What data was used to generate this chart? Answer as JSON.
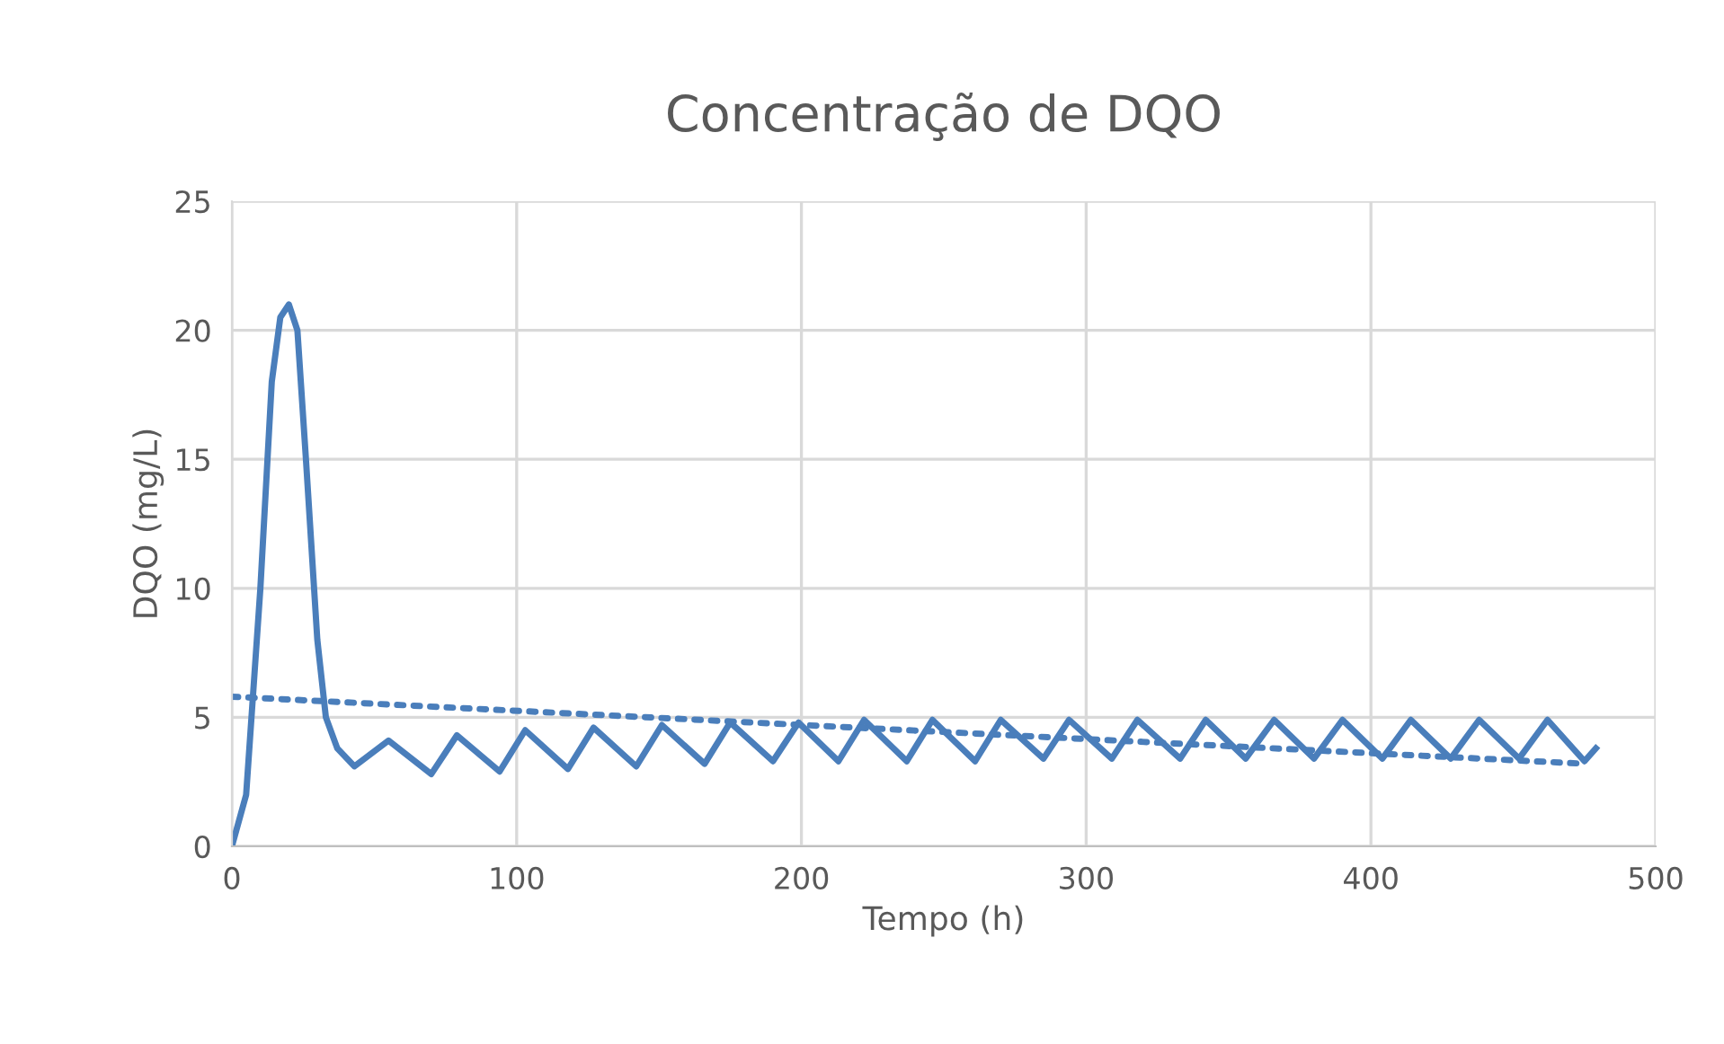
{
  "chart_data": {
    "type": "line",
    "title": "Concentração de DQO",
    "xlabel": "Tempo (h)",
    "ylabel": "DQO (mg/L)",
    "xlim": [
      0,
      500
    ],
    "xticks": [
      0,
      100,
      200,
      300,
      400,
      500
    ],
    "ylim": [
      0,
      25
    ],
    "yticks": [
      0,
      5,
      10,
      15,
      20,
      25
    ],
    "grid": true,
    "marker": "none",
    "series": [
      {
        "color": "#4a7ebb",
        "line_style": "solid",
        "x": [
          0,
          5,
          10,
          14,
          17,
          20,
          23,
          26,
          30,
          33,
          37,
          43,
          55,
          70,
          79,
          94,
          103,
          118,
          127,
          142,
          151,
          166,
          175,
          190,
          199,
          213,
          222,
          237,
          246,
          261,
          270,
          285,
          294,
          309,
          318,
          333,
          342,
          356,
          366,
          380,
          390,
          404,
          414,
          428,
          438,
          452,
          462,
          475,
          479
        ],
        "values": [
          0,
          2,
          10,
          18,
          20.5,
          21,
          20,
          15,
          8,
          5,
          3.8,
          3.1,
          4.1,
          2.8,
          4.3,
          2.9,
          4.5,
          3.0,
          4.6,
          3.1,
          4.7,
          3.2,
          4.8,
          3.3,
          4.8,
          3.3,
          4.9,
          3.3,
          4.9,
          3.3,
          4.9,
          3.4,
          4.9,
          3.4,
          4.9,
          3.4,
          4.9,
          3.4,
          4.9,
          3.4,
          4.9,
          3.4,
          4.9,
          3.4,
          4.9,
          3.4,
          4.9,
          3.3,
          3.8
        ]
      },
      {
        "color": "#4a7ebb",
        "line_style": "dotted",
        "x": [
          0,
          475
        ],
        "values": [
          5.8,
          3.2
        ]
      }
    ]
  }
}
